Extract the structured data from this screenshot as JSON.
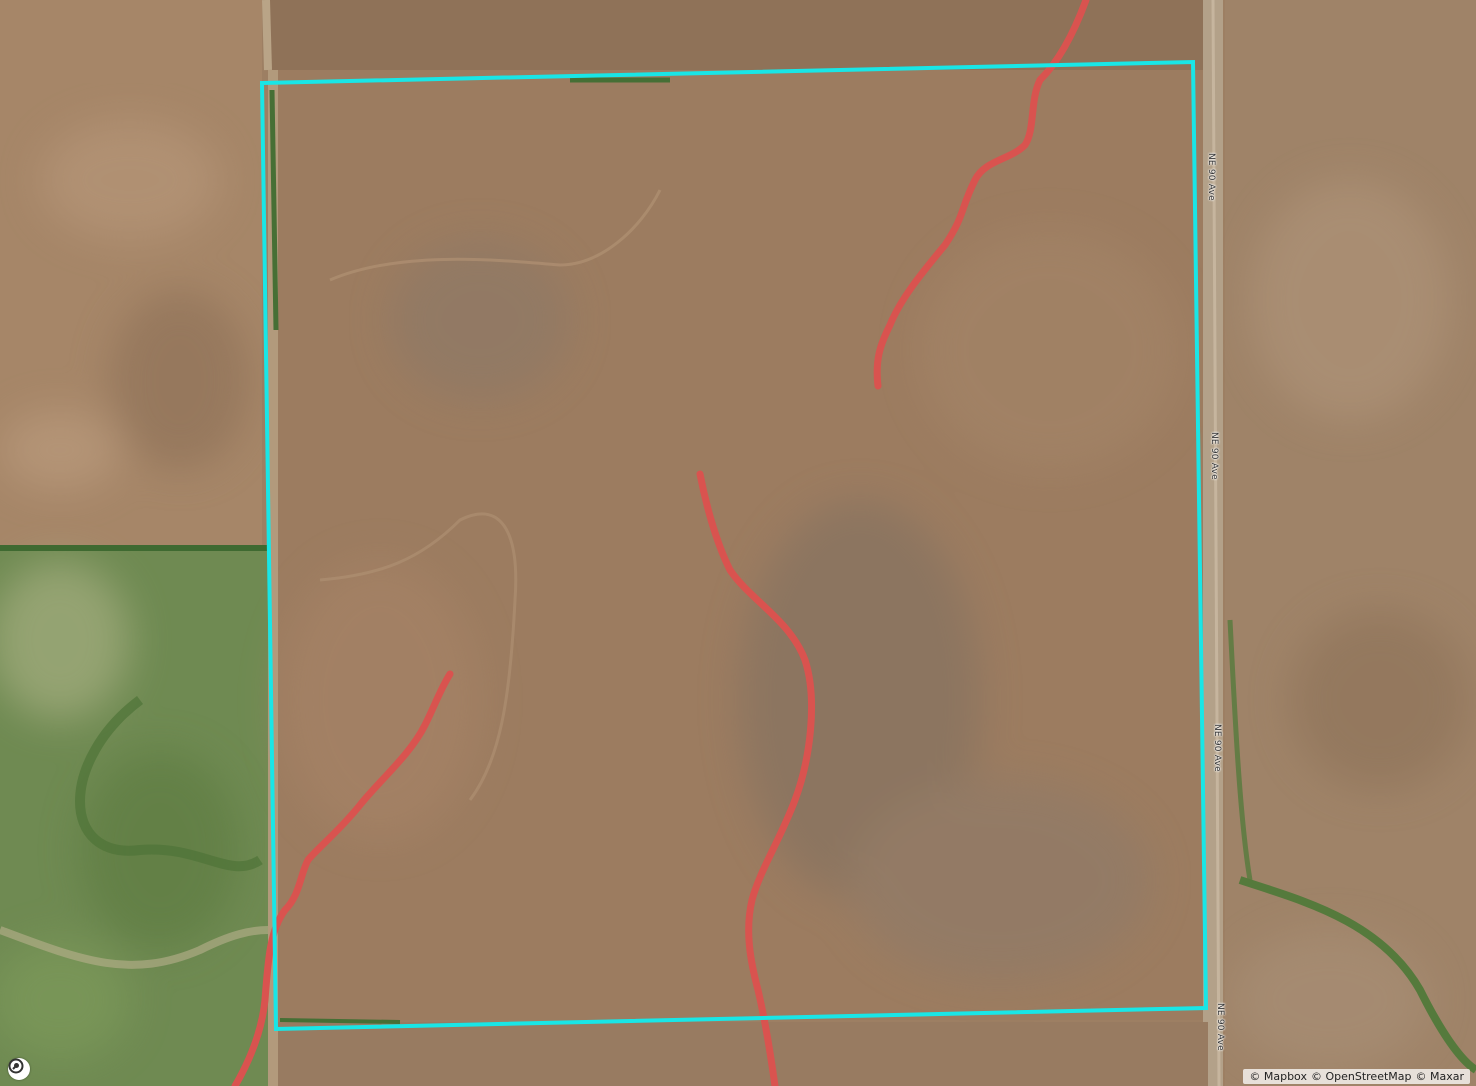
{
  "map": {
    "style": "satellite",
    "boundary_color": "#19e6e6",
    "drainage_color": "#d9534f",
    "road_labels": [
      "NE 90 Ave",
      "NE 90 Ave",
      "NE 90 Ave",
      "NE 90 Ave"
    ],
    "attribution": {
      "mapbox": "© Mapbox",
      "osm": "© OpenStreetMap",
      "maxar": "© Maxar"
    },
    "logo_icon": "mapbox-logo-icon"
  }
}
